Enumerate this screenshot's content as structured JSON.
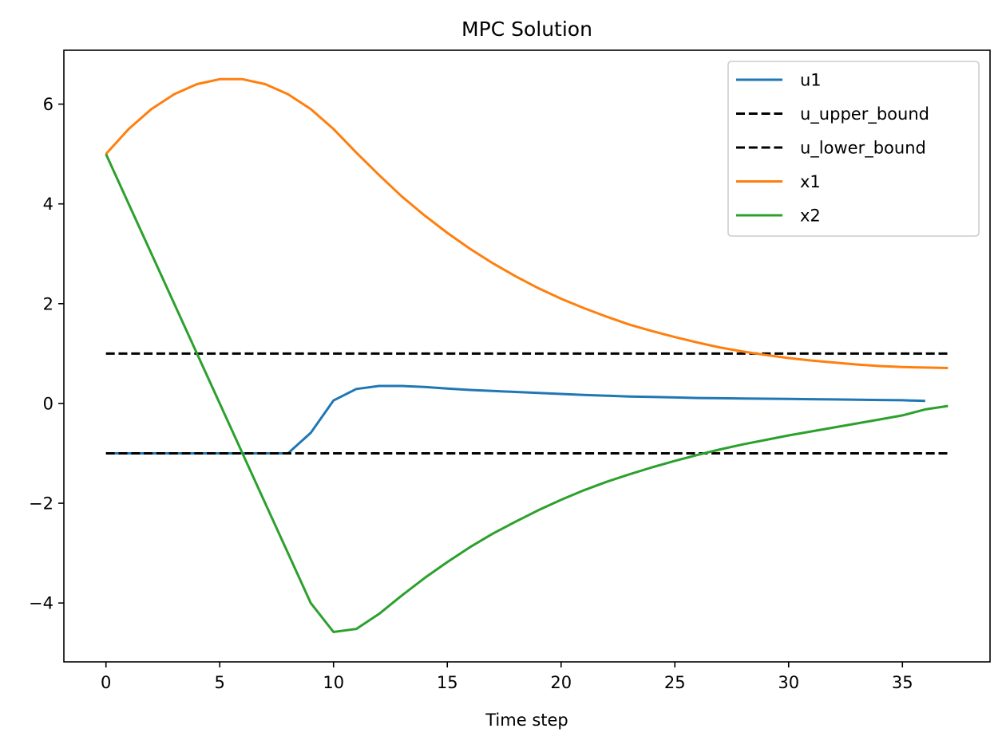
{
  "chart_data": {
    "type": "line",
    "title": "MPC Solution",
    "xlabel": "Time step",
    "ylabel": "",
    "xlim": [
      -1.85,
      38.85
    ],
    "ylim": [
      -5.18,
      7.08
    ],
    "x_ticks": [
      0,
      5,
      10,
      15,
      20,
      25,
      30,
      35
    ],
    "y_ticks": [
      -4,
      -2,
      0,
      2,
      4,
      6
    ],
    "grid": false,
    "legend_position": "top-right",
    "series": [
      {
        "name": "u1",
        "color": "#1f77b4",
        "dash": "solid",
        "x": [
          0,
          1,
          2,
          3,
          4,
          5,
          6,
          7,
          8,
          9,
          10,
          11,
          12,
          13,
          14,
          15,
          16,
          17,
          18,
          19,
          20,
          21,
          22,
          23,
          24,
          25,
          26,
          27,
          28,
          29,
          30,
          31,
          32,
          33,
          34,
          35,
          36
        ],
        "values": [
          -1,
          -1,
          -1,
          -1,
          -1,
          -1,
          -1,
          -1,
          -1,
          -0.59,
          0.06,
          0.29,
          0.35,
          0.35,
          0.33,
          0.3,
          0.27,
          0.25,
          0.23,
          0.21,
          0.19,
          0.17,
          0.155,
          0.14,
          0.13,
          0.12,
          0.11,
          0.105,
          0.1,
          0.095,
          0.09,
          0.085,
          0.08,
          0.075,
          0.07,
          0.065,
          0.05
        ]
      },
      {
        "name": "u_upper_bound",
        "color": "#000000",
        "dash": "dashed",
        "x": [
          0,
          37
        ],
        "values": [
          1,
          1
        ]
      },
      {
        "name": "u_lower_bound",
        "color": "#000000",
        "dash": "dashed",
        "x": [
          0,
          37
        ],
        "values": [
          -1,
          -1
        ]
      },
      {
        "name": "x1",
        "color": "#ff7f0e",
        "dash": "solid",
        "x": [
          0,
          1,
          2,
          3,
          4,
          5,
          6,
          7,
          8,
          9,
          10,
          11,
          12,
          13,
          14,
          15,
          16,
          17,
          18,
          19,
          20,
          21,
          22,
          23,
          24,
          25,
          26,
          27,
          28,
          29,
          30,
          31,
          32,
          33,
          34,
          35,
          36,
          37
        ],
        "values": [
          5,
          5.5,
          5.9,
          6.2,
          6.4,
          6.5,
          6.5,
          6.4,
          6.2,
          5.9,
          5.5,
          5.03,
          4.58,
          4.15,
          3.77,
          3.42,
          3.1,
          2.81,
          2.55,
          2.31,
          2.1,
          1.91,
          1.74,
          1.58,
          1.45,
          1.33,
          1.22,
          1.12,
          1.04,
          0.97,
          0.91,
          0.86,
          0.82,
          0.78,
          0.75,
          0.73,
          0.72,
          0.71
        ]
      },
      {
        "name": "x2",
        "color": "#2ca02c",
        "dash": "solid",
        "x": [
          0,
          1,
          2,
          3,
          4,
          5,
          6,
          7,
          8,
          9,
          10,
          11,
          12,
          13,
          14,
          15,
          16,
          17,
          18,
          19,
          20,
          21,
          22,
          23,
          24,
          25,
          26,
          27,
          28,
          29,
          30,
          31,
          32,
          33,
          34,
          35,
          36,
          37
        ],
        "values": [
          5,
          4,
          3,
          2,
          1,
          0,
          -1,
          -2,
          -3,
          -4,
          -4.58,
          -4.52,
          -4.22,
          -3.85,
          -3.5,
          -3.18,
          -2.88,
          -2.61,
          -2.37,
          -2.14,
          -1.93,
          -1.74,
          -1.57,
          -1.42,
          -1.28,
          -1.15,
          -1.03,
          -0.92,
          -0.82,
          -0.73,
          -0.64,
          -0.56,
          -0.48,
          -0.4,
          -0.32,
          -0.24,
          -0.12,
          -0.05
        ]
      }
    ]
  }
}
